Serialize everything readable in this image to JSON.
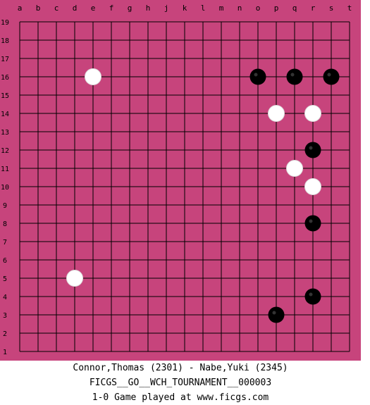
{
  "board": {
    "size": 19,
    "background_color": "#c7447c",
    "line_color": "#000000",
    "column_labels": [
      "a",
      "b",
      "c",
      "d",
      "e",
      "f",
      "g",
      "h",
      "j",
      "k",
      "l",
      "m",
      "n",
      "o",
      "p",
      "q",
      "r",
      "s",
      "t"
    ],
    "row_labels": [
      "19",
      "18",
      "17",
      "16",
      "15",
      "14",
      "13",
      "12",
      "11",
      "10",
      "9",
      "8",
      "7",
      "6",
      "5",
      "4",
      "3",
      "2",
      "1"
    ]
  },
  "stones": [
    {
      "color": "white",
      "point": "e16"
    },
    {
      "color": "black",
      "point": "o16"
    },
    {
      "color": "black",
      "point": "q16"
    },
    {
      "color": "black",
      "point": "s16"
    },
    {
      "color": "white",
      "point": "p14"
    },
    {
      "color": "white",
      "point": "r14"
    },
    {
      "color": "black",
      "point": "r12"
    },
    {
      "color": "white",
      "point": "q11"
    },
    {
      "color": "white",
      "point": "r10"
    },
    {
      "color": "black",
      "point": "r8"
    },
    {
      "color": "white",
      "point": "d5"
    },
    {
      "color": "black",
      "point": "r4"
    },
    {
      "color": "black",
      "point": "p3"
    }
  ],
  "footer": {
    "players": "Connor,Thomas (2301) - Nabe,Yuki (2345)",
    "event": "FICGS__GO__WCH_TOURNAMENT__000003",
    "result": "1-0    Game played at www.ficgs.com"
  }
}
